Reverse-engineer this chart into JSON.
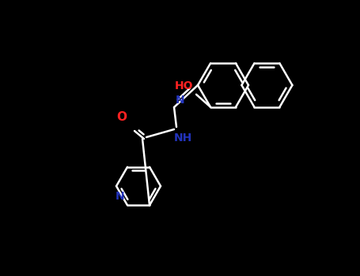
{
  "bg": "#000000",
  "bond_color": "#ffffff",
  "atom_colors": {
    "O": "#ff2222",
    "N": "#2233bb",
    "NH": "#2233bb"
  },
  "lw": 1.8,
  "figsize": [
    4.55,
    3.5
  ],
  "dpi": 100
}
